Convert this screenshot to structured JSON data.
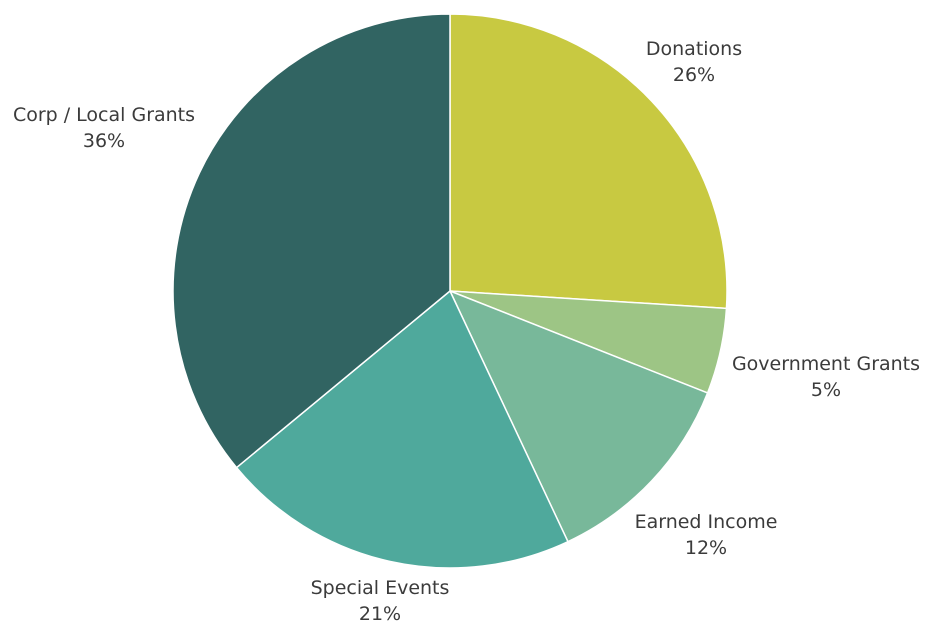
{
  "chart_data": {
    "type": "pie",
    "title": "",
    "start": "top",
    "direction": "clockwise",
    "legend": "none",
    "slices": [
      {
        "label": "Donations",
        "value": 26,
        "value_label": "26%",
        "color": "#c8c941"
      },
      {
        "label": "Government Grants",
        "value": 5,
        "value_label": "5%",
        "color": "#9dc585"
      },
      {
        "label": "Earned Income",
        "value": 12,
        "value_label": "12%",
        "color": "#78b89a"
      },
      {
        "label": "Special Events",
        "value": 21,
        "value_label": "21%",
        "color": "#4fa99c"
      },
      {
        "label": "Corp / Local Grants",
        "value": 36,
        "value_label": "36%",
        "color": "#316462"
      }
    ]
  }
}
